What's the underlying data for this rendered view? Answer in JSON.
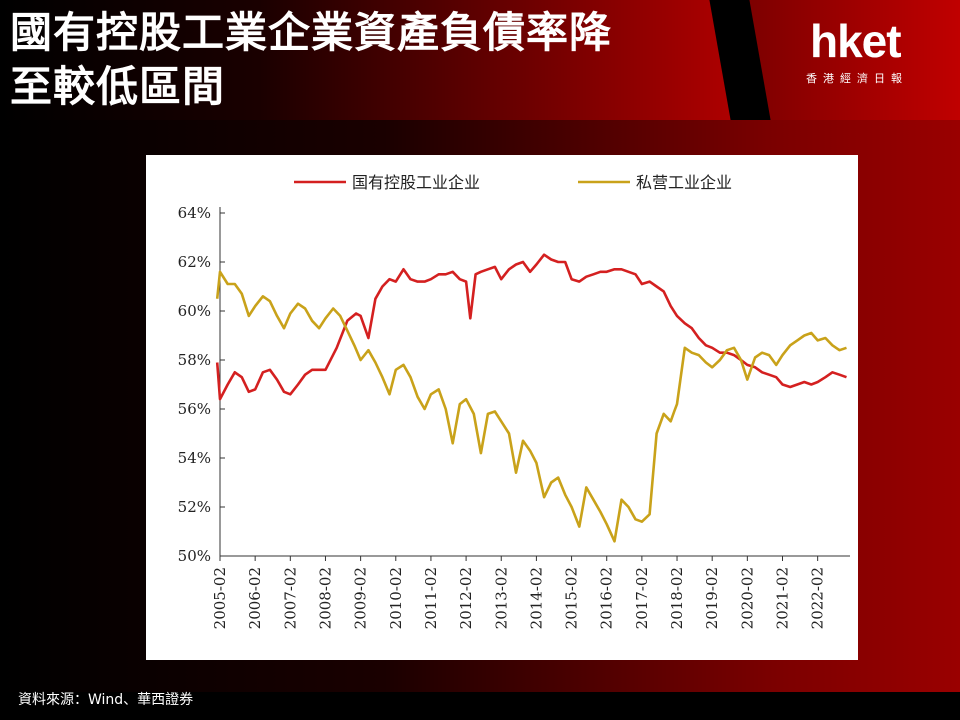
{
  "header": {
    "title": "國有控股工業企業資產負債率降\n至較低區間",
    "logo_text": "hket",
    "logo_subtitle": "香港經濟日報"
  },
  "footer": {
    "source": "資料來源：Wind、華西證券"
  },
  "colors": {
    "state_owned": "#d42020",
    "private": "#c9a21a"
  },
  "chart_data": {
    "type": "line",
    "title": "",
    "xlabel": "",
    "ylabel": "",
    "ylim": [
      50,
      64
    ],
    "yticks": [
      50,
      52,
      54,
      56,
      58,
      60,
      62,
      64
    ],
    "ytick_labels": [
      "50%",
      "52%",
      "54%",
      "56%",
      "58%",
      "60%",
      "62%",
      "64%"
    ],
    "xlim": [
      2005.08,
      2023.0
    ],
    "xticks": [
      2005.08,
      2006.08,
      2007.08,
      2008.08,
      2009.08,
      2010.08,
      2011.08,
      2012.08,
      2013.08,
      2014.08,
      2015.08,
      2016.08,
      2017.08,
      2018.08,
      2019.08,
      2020.08,
      2021.08,
      2022.08
    ],
    "xtick_labels": [
      "2005-02",
      "2006-02",
      "2007-02",
      "2008-02",
      "2009-02",
      "2010-02",
      "2011-02",
      "2012-02",
      "2013-02",
      "2014-02",
      "2015-02",
      "2016-02",
      "2017-02",
      "2018-02",
      "2019-02",
      "2020-02",
      "2021-02",
      "2022-02"
    ],
    "legend": {
      "position": "top"
    },
    "grid": false,
    "series": [
      {
        "name": "国有控股工业企业",
        "color": "#d42020",
        "x": [
          2005.0,
          2005.08,
          2005.3,
          2005.5,
          2005.7,
          2005.9,
          2006.08,
          2006.3,
          2006.5,
          2006.7,
          2006.9,
          2007.08,
          2007.3,
          2007.5,
          2007.7,
          2007.9,
          2008.08,
          2008.4,
          2008.7,
          2008.95,
          2009.08,
          2009.3,
          2009.5,
          2009.7,
          2009.9,
          2010.08,
          2010.3,
          2010.5,
          2010.7,
          2010.9,
          2011.08,
          2011.3,
          2011.5,
          2011.7,
          2011.9,
          2012.08,
          2012.2,
          2012.35,
          2012.5,
          2012.7,
          2012.9,
          2013.08,
          2013.3,
          2013.5,
          2013.7,
          2013.9,
          2014.08,
          2014.3,
          2014.5,
          2014.7,
          2014.9,
          2015.08,
          2015.3,
          2015.5,
          2015.7,
          2015.9,
          2016.08,
          2016.3,
          2016.5,
          2016.7,
          2016.9,
          2017.08,
          2017.3,
          2017.5,
          2017.7,
          2017.9,
          2018.08,
          2018.3,
          2018.5,
          2018.7,
          2018.9,
          2019.08,
          2019.3,
          2019.5,
          2019.7,
          2019.9,
          2020.08,
          2020.3,
          2020.5,
          2020.7,
          2020.9,
          2021.08,
          2021.3,
          2021.5,
          2021.7,
          2021.9,
          2022.08,
          2022.3,
          2022.5,
          2022.7,
          2022.9
        ],
        "values": [
          57.9,
          56.4,
          57.0,
          57.5,
          57.3,
          56.7,
          56.8,
          57.5,
          57.6,
          57.2,
          56.7,
          56.6,
          57.0,
          57.4,
          57.6,
          57.6,
          57.6,
          58.5,
          59.6,
          59.9,
          59.8,
          58.9,
          60.5,
          61.0,
          61.3,
          61.2,
          61.7,
          61.3,
          61.2,
          61.2,
          61.3,
          61.5,
          61.5,
          61.6,
          61.3,
          61.2,
          59.7,
          61.5,
          61.6,
          61.7,
          61.8,
          61.3,
          61.7,
          61.9,
          62.0,
          61.6,
          61.9,
          62.3,
          62.1,
          62.0,
          62.0,
          61.3,
          61.2,
          61.4,
          61.5,
          61.6,
          61.6,
          61.7,
          61.7,
          61.6,
          61.5,
          61.1,
          61.2,
          61.0,
          60.8,
          60.2,
          59.8,
          59.5,
          59.3,
          58.9,
          58.6,
          58.5,
          58.3,
          58.3,
          58.2,
          58.0,
          57.8,
          57.7,
          57.5,
          57.4,
          57.3,
          57.0,
          56.9,
          57.0,
          57.1,
          57.0,
          57.1,
          57.3,
          57.5,
          57.4,
          57.3
        ]
      },
      {
        "name": "私营工业企业",
        "color": "#c9a21a",
        "x": [
          2005.0,
          2005.08,
          2005.3,
          2005.5,
          2005.7,
          2005.9,
          2006.08,
          2006.3,
          2006.5,
          2006.7,
          2006.9,
          2007.08,
          2007.3,
          2007.5,
          2007.7,
          2007.9,
          2008.08,
          2008.3,
          2008.5,
          2008.7,
          2008.9,
          2009.08,
          2009.3,
          2009.5,
          2009.7,
          2009.9,
          2010.08,
          2010.3,
          2010.5,
          2010.7,
          2010.9,
          2011.08,
          2011.3,
          2011.5,
          2011.7,
          2011.9,
          2012.08,
          2012.3,
          2012.5,
          2012.7,
          2012.9,
          2013.08,
          2013.3,
          2013.5,
          2013.7,
          2013.9,
          2014.08,
          2014.3,
          2014.5,
          2014.7,
          2014.9,
          2015.08,
          2015.3,
          2015.5,
          2015.7,
          2015.9,
          2016.08,
          2016.3,
          2016.5,
          2016.7,
          2016.9,
          2017.08,
          2017.3,
          2017.5,
          2017.7,
          2017.9,
          2018.0,
          2018.08,
          2018.3,
          2018.5,
          2018.7,
          2018.9,
          2019.08,
          2019.3,
          2019.5,
          2019.7,
          2019.9,
          2020.08,
          2020.3,
          2020.5,
          2020.7,
          2020.9,
          2021.08,
          2021.3,
          2021.5,
          2021.7,
          2021.9,
          2022.08,
          2022.3,
          2022.5,
          2022.7,
          2022.9
        ],
        "values": [
          60.5,
          61.6,
          61.1,
          61.1,
          60.7,
          59.8,
          60.2,
          60.6,
          60.4,
          59.8,
          59.3,
          59.9,
          60.3,
          60.1,
          59.6,
          59.3,
          59.7,
          60.1,
          59.8,
          59.2,
          58.6,
          58.0,
          58.4,
          57.9,
          57.3,
          56.6,
          57.6,
          57.8,
          57.3,
          56.5,
          56.0,
          56.6,
          56.8,
          56.0,
          54.6,
          56.2,
          56.4,
          55.8,
          54.2,
          55.8,
          55.9,
          55.5,
          55.0,
          53.4,
          54.7,
          54.3,
          53.8,
          52.4,
          53.0,
          53.2,
          52.5,
          52.0,
          51.2,
          52.8,
          52.3,
          51.8,
          51.3,
          50.6,
          52.3,
          52.0,
          51.5,
          51.4,
          51.7,
          55.0,
          55.8,
          55.5,
          55.9,
          56.2,
          58.5,
          58.3,
          58.2,
          57.9,
          57.7,
          58.0,
          58.4,
          58.5,
          58.0,
          57.2,
          58.1,
          58.3,
          58.2,
          57.8,
          58.2,
          58.6,
          58.8,
          59.0,
          59.1,
          58.8,
          58.9,
          58.6,
          58.4,
          58.5
        ]
      }
    ]
  }
}
